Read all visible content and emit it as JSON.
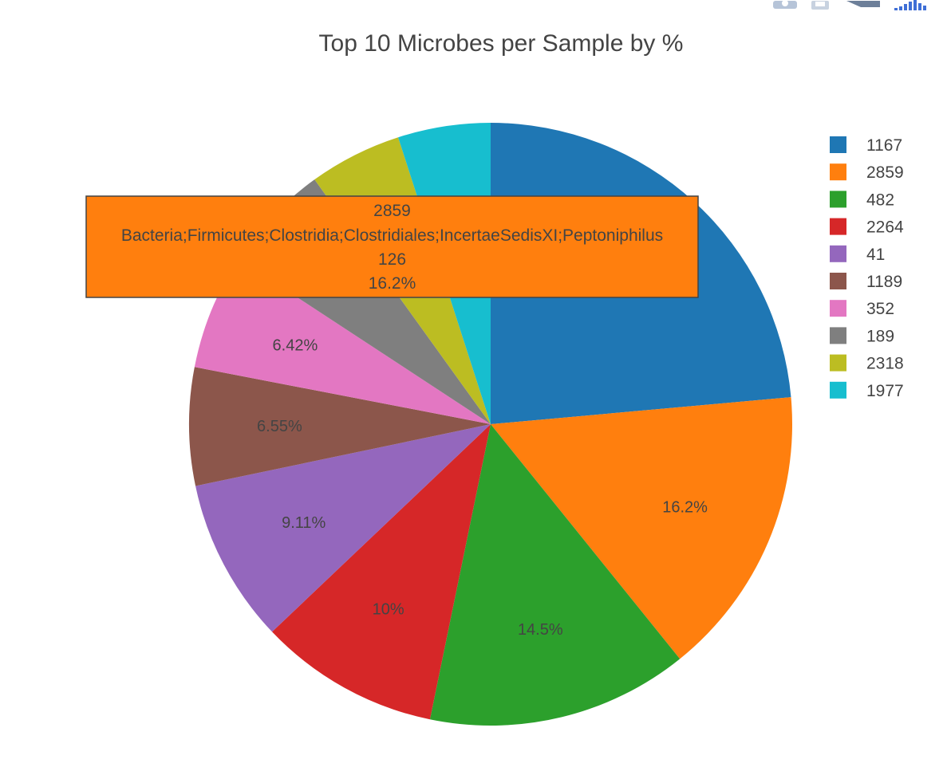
{
  "chart_data": {
    "type": "pie",
    "title": "Top 10 Microbes per Sample by %",
    "slices": [
      {
        "label": "1167",
        "value": 190,
        "pct_text": "",
        "color": "#1f77b4"
      },
      {
        "label": "2859",
        "value": 126,
        "pct_text": "16.2%",
        "color": "#ff7f0e"
      },
      {
        "label": "482",
        "value": 113,
        "pct_text": "14.5%",
        "color": "#2ca02c"
      },
      {
        "label": "2264",
        "value": 78,
        "pct_text": "10%",
        "color": "#d62728"
      },
      {
        "label": "41",
        "value": 71,
        "pct_text": "9.11%",
        "color": "#9467bd"
      },
      {
        "label": "1189",
        "value": 51,
        "pct_text": "6.55%",
        "color": "#8c564b"
      },
      {
        "label": "352",
        "value": 50,
        "pct_text": "6.42%",
        "color": "#e377c2"
      },
      {
        "label": "189",
        "value": 47,
        "pct_text": "6.03%",
        "color": "#7f7f7f"
      },
      {
        "label": "2318",
        "value": 40,
        "pct_text": "5.13%",
        "color": "#bcbd22"
      },
      {
        "label": "1977",
        "value": 40,
        "pct_text": "5.13%",
        "color": "#17becf"
      }
    ],
    "legend_position": "right"
  },
  "hover": {
    "slice_label": "2859",
    "text": "Bacteria;Firmicutes;Clostridia;Clostridiales;IncertaeSedisXI;Peptoniphilus",
    "value": "126",
    "percent": "16.2%",
    "color": "#ff7f0e"
  },
  "modebar": {
    "icons": [
      "camera-icon",
      "save-icon",
      "pan-icon",
      "plotly-logo-icon"
    ]
  }
}
